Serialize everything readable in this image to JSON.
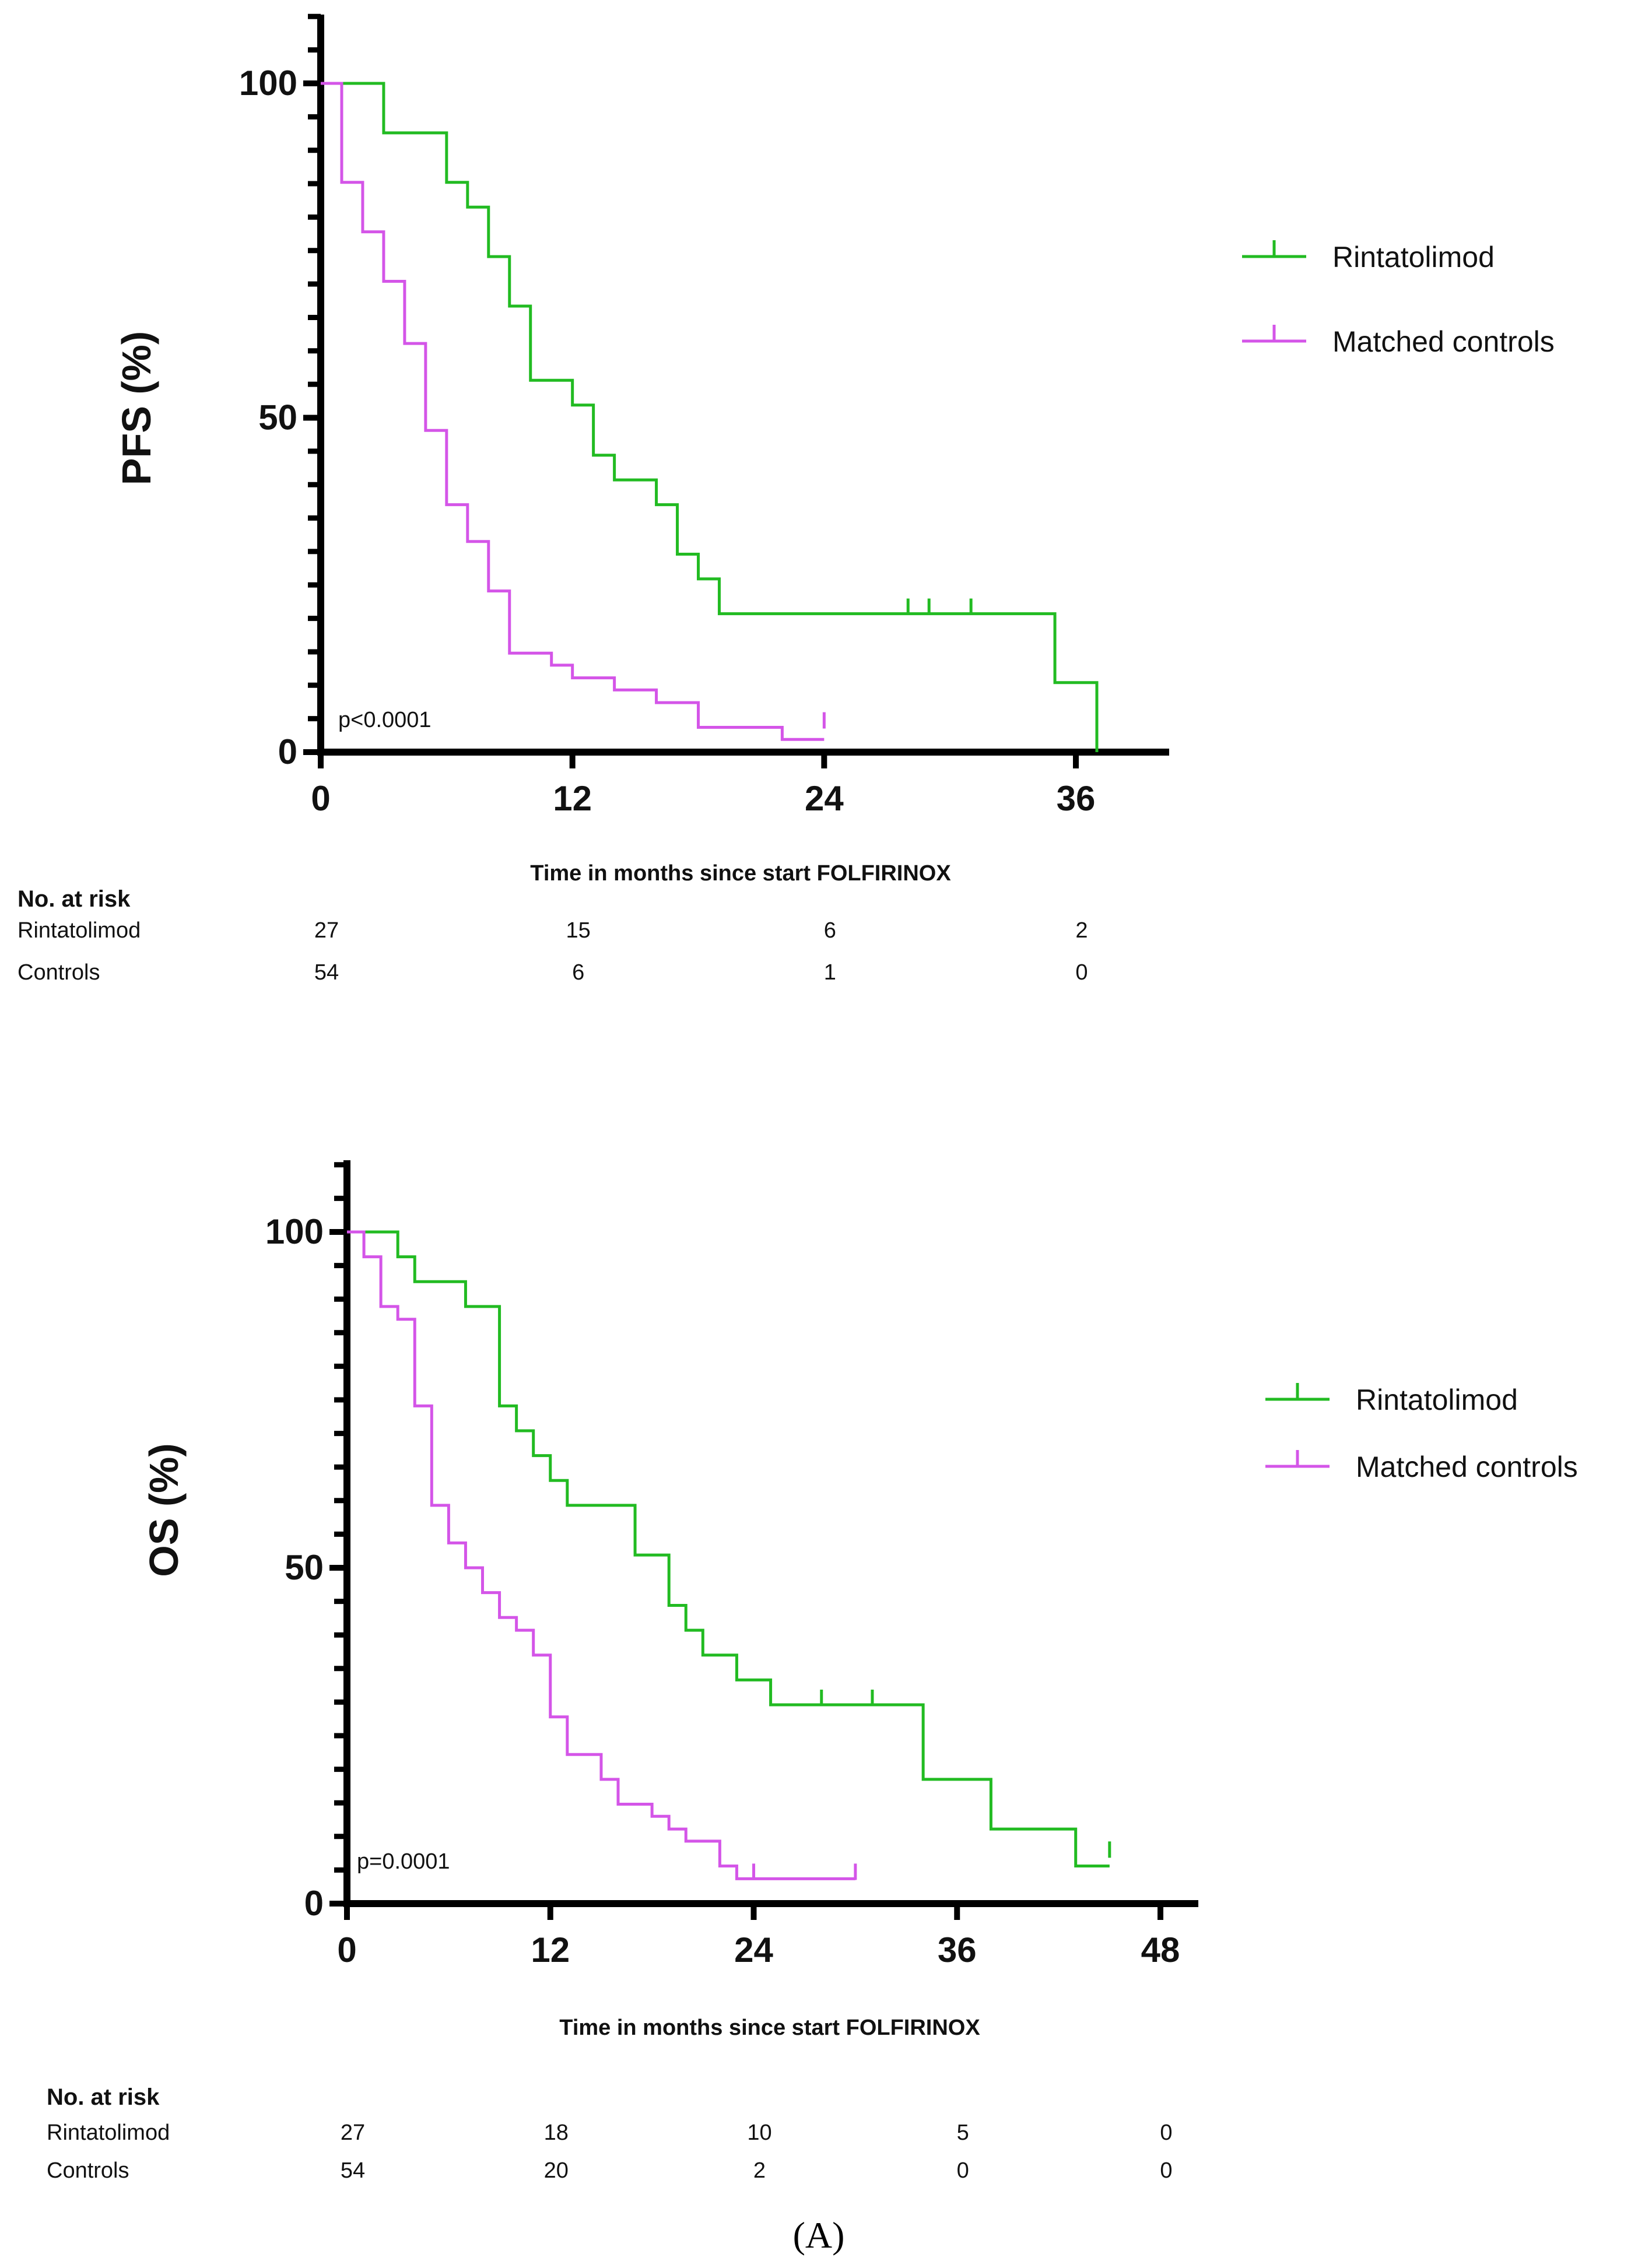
{
  "panel_label": "(A)",
  "colors": {
    "rintatolimod": "#22bb22",
    "controls": "#d455e8",
    "axis": "#000000"
  },
  "chart_data": [
    {
      "type": "line",
      "subtype": "kaplan-meier",
      "ylabel": "PFS (%)",
      "xlabel": "Time in months since start FOLFIRINOX",
      "xlim": [
        0,
        36
      ],
      "ylim": [
        0,
        100
      ],
      "xticks": [
        "0",
        "12",
        "24",
        "36"
      ],
      "yticks": [
        "0",
        "50",
        "100"
      ],
      "annotation": "p<0.0001",
      "legend": {
        "placement": "right",
        "entries": [
          "Rintatolimod",
          "Matched controls"
        ]
      },
      "series": [
        {
          "name": "Rintatolimod",
          "steps": [
            [
              0,
              100
            ],
            [
              3,
              92.6
            ],
            [
              6,
              85.2
            ],
            [
              7,
              81.5
            ],
            [
              8,
              74.1
            ],
            [
              9,
              66.7
            ],
            [
              10,
              55.6
            ],
            [
              12,
              51.9
            ],
            [
              13,
              44.4
            ],
            [
              14,
              40.7
            ],
            [
              16,
              37
            ],
            [
              17,
              29.6
            ],
            [
              18,
              25.9
            ],
            [
              19,
              20.7
            ],
            [
              35,
              10.4
            ],
            [
              37,
              0
            ]
          ],
          "end_x": 37,
          "censored": [
            [
              28,
              20.7
            ],
            [
              29,
              20.7
            ],
            [
              31,
              20.7
            ]
          ]
        },
        {
          "name": "Matched controls",
          "steps": [
            [
              0,
              100
            ],
            [
              1,
              85.2
            ],
            [
              2,
              77.8
            ],
            [
              3,
              70.4
            ],
            [
              4,
              61.1
            ],
            [
              5,
              48.1
            ],
            [
              6,
              37
            ],
            [
              7,
              31.5
            ],
            [
              8,
              24.1
            ],
            [
              9,
              14.8
            ],
            [
              11,
              13
            ],
            [
              12,
              11.1
            ],
            [
              14,
              9.3
            ],
            [
              16,
              7.4
            ],
            [
              18,
              3.7
            ],
            [
              22,
              1.9
            ]
          ],
          "end_x": 24,
          "censored": [
            [
              24,
              3.7
            ]
          ]
        }
      ],
      "risk_table": {
        "header": "No. at risk",
        "rows": [
          {
            "label": "Rintatolimod",
            "values": [
              "27",
              "15",
              "6",
              "2"
            ]
          },
          {
            "label": "Controls",
            "values": [
              "54",
              "6",
              "1",
              "0"
            ]
          }
        ]
      }
    },
    {
      "type": "line",
      "subtype": "kaplan-meier",
      "ylabel": "OS (%)",
      "xlabel": "Time in months since start FOLFIRINOX",
      "xlim": [
        0,
        48
      ],
      "ylim": [
        0,
        100
      ],
      "xticks": [
        "0",
        "12",
        "24",
        "36",
        "48"
      ],
      "yticks": [
        "0",
        "50",
        "100"
      ],
      "annotation": "p=0.0001",
      "legend": {
        "placement": "right",
        "entries": [
          "Rintatolimod",
          "Matched controls"
        ]
      },
      "series": [
        {
          "name": "Rintatolimod",
          "steps": [
            [
              0,
              100
            ],
            [
              3,
              96.3
            ],
            [
              4,
              92.6
            ],
            [
              7,
              88.9
            ],
            [
              9,
              74.1
            ],
            [
              10,
              70.4
            ],
            [
              11,
              66.7
            ],
            [
              12,
              63
            ],
            [
              13,
              59.3
            ],
            [
              17,
              51.9
            ],
            [
              19,
              44.4
            ],
            [
              20,
              40.7
            ],
            [
              21,
              37
            ],
            [
              23,
              33.3
            ],
            [
              25,
              29.6
            ],
            [
              34,
              18.5
            ],
            [
              38,
              11.1
            ],
            [
              43,
              5.6
            ]
          ],
          "end_x": 45,
          "censored": [
            [
              28,
              29.6
            ],
            [
              31,
              29.6
            ],
            [
              45,
              7
            ]
          ]
        },
        {
          "name": "Matched controls",
          "steps": [
            [
              0,
              100
            ],
            [
              1,
              96.3
            ],
            [
              2,
              88.9
            ],
            [
              3,
              87
            ],
            [
              4,
              74.1
            ],
            [
              5,
              59.3
            ],
            [
              6,
              53.7
            ],
            [
              7,
              50
            ],
            [
              8,
              46.3
            ],
            [
              9,
              42.6
            ],
            [
              10,
              40.7
            ],
            [
              11,
              37
            ],
            [
              12,
              27.8
            ],
            [
              13,
              22.2
            ],
            [
              15,
              18.5
            ],
            [
              16,
              14.8
            ],
            [
              18,
              13
            ],
            [
              19,
              11.1
            ],
            [
              20,
              9.3
            ],
            [
              22,
              5.6
            ],
            [
              23,
              3.7
            ]
          ],
          "end_x": 30,
          "censored": [
            [
              24,
              3.7
            ],
            [
              30,
              3.7
            ]
          ]
        }
      ],
      "risk_table": {
        "header": "No. at risk",
        "rows": [
          {
            "label": "Rintatolimod",
            "values": [
              "27",
              "18",
              "10",
              "5",
              "0"
            ]
          },
          {
            "label": "Controls",
            "values": [
              "54",
              "20",
              "2",
              "0",
              "0"
            ]
          }
        ]
      }
    }
  ]
}
